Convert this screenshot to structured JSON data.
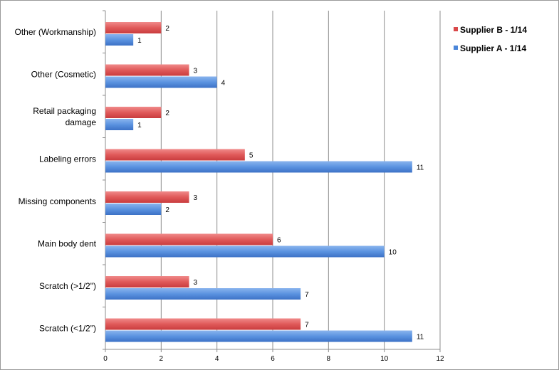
{
  "chart_data": {
    "type": "bar",
    "orientation": "horizontal",
    "title": "",
    "xlabel": "",
    "ylabel": "",
    "xlim": [
      0,
      12
    ],
    "xticks": [
      "0",
      "2",
      "4",
      "6",
      "8",
      "10",
      "12"
    ],
    "grid": true,
    "legend_position": "right",
    "categories": [
      [
        "Other (Workmanship)"
      ],
      [
        "Other (Cosmetic)"
      ],
      [
        "Retail packaging",
        "damage"
      ],
      [
        "Labeling errors"
      ],
      [
        "Missing components"
      ],
      [
        "Main body dent"
      ],
      [
        "Scratch (>1/2\")"
      ],
      [
        "Scratch (<1/2\")"
      ]
    ],
    "series": [
      {
        "name": "Supplier B - 1/14",
        "color": "#d9484a",
        "values": [
          2,
          3,
          2,
          5,
          3,
          6,
          3,
          7
        ]
      },
      {
        "name": "Supplier A - 1/14",
        "color": "#4a86d9",
        "values": [
          1,
          4,
          1,
          11,
          2,
          10,
          7,
          11
        ]
      }
    ]
  }
}
